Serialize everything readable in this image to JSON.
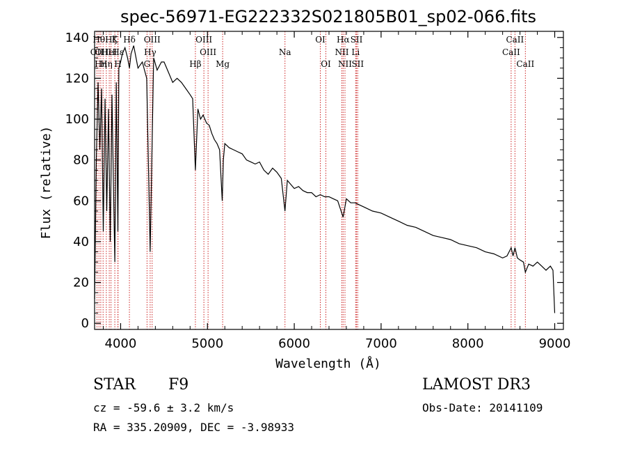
{
  "chart_data": {
    "type": "line",
    "title": "spec-56971-EG222332S021805B01_sp02-066.fits",
    "xlabel": "Wavelength (Å)",
    "ylabel": "Flux (relative)",
    "xlim": [
      3700,
      9100
    ],
    "ylim": [
      -3,
      143
    ],
    "xticks": [
      4000,
      5000,
      6000,
      7000,
      8000,
      9000
    ],
    "yticks": [
      0,
      20,
      40,
      60,
      80,
      100,
      120,
      140
    ],
    "series": [
      {
        "name": "spectrum",
        "x": [
          3700,
          3720,
          3740,
          3760,
          3780,
          3800,
          3820,
          3840,
          3860,
          3880,
          3900,
          3920,
          3933,
          3950,
          3968,
          3980,
          4000,
          4020,
          4050,
          4080,
          4101,
          4120,
          4150,
          4200,
          4250,
          4300,
          4340,
          4380,
          4420,
          4470,
          4500,
          4550,
          4600,
          4650,
          4700,
          4750,
          4800,
          4830,
          4861,
          4890,
          4920,
          4950,
          4990,
          5020,
          5050,
          5080,
          5110,
          5140,
          5170,
          5183,
          5200,
          5250,
          5300,
          5350,
          5400,
          5450,
          5500,
          5550,
          5600,
          5650,
          5700,
          5750,
          5800,
          5850,
          5893,
          5920,
          5960,
          6000,
          6050,
          6100,
          6150,
          6200,
          6250,
          6300,
          6350,
          6400,
          6450,
          6500,
          6563,
          6600,
          6650,
          6700,
          6750,
          6800,
          6900,
          7000,
          7100,
          7200,
          7300,
          7400,
          7500,
          7600,
          7700,
          7800,
          7900,
          8000,
          8100,
          8200,
          8300,
          8400,
          8450,
          8498,
          8520,
          8542,
          8570,
          8600,
          8640,
          8662,
          8700,
          8750,
          8800,
          8850,
          8900,
          8950,
          8980,
          9000
        ],
        "values": [
          12,
          80,
          118,
          85,
          115,
          45,
          110,
          55,
          105,
          40,
          112,
          60,
          30,
          118,
          45,
          125,
          128,
          132,
          135,
          130,
          125,
          132,
          136,
          125,
          128,
          120,
          35,
          130,
          124,
          128,
          128,
          123,
          118,
          120,
          118,
          115,
          112,
          110,
          75,
          105,
          100,
          102,
          98,
          97,
          93,
          90,
          88,
          85,
          60,
          80,
          88,
          86,
          85,
          84,
          83,
          80,
          79,
          78,
          79,
          75,
          73,
          76,
          74,
          71,
          55,
          70,
          68,
          66,
          67,
          65,
          64,
          64,
          62,
          63,
          62,
          62,
          61,
          60,
          52,
          61,
          59,
          59,
          58,
          57,
          55,
          54,
          52,
          50,
          48,
          47,
          45,
          43,
          42,
          41,
          39,
          38,
          37,
          35,
          34,
          32,
          33,
          37,
          33,
          37,
          32,
          31,
          30,
          25,
          29,
          28,
          30,
          28,
          26,
          28,
          26,
          5
        ]
      }
    ],
    "line_markers": [
      {
        "x": 3727,
        "label": "OII",
        "row": 2
      },
      {
        "x": 3750,
        "label": "Hθ",
        "row": 1
      },
      {
        "x": 3771,
        "label": "Hη",
        "row": 3
      },
      {
        "x": 3798,
        "label": "OIII",
        "row": 2
      },
      {
        "x": 3835,
        "label": "Hη",
        "row": 3
      },
      {
        "x": 3869,
        "label": "HeI",
        "row": 2
      },
      {
        "x": 3889,
        "label": "Hζ",
        "row": 1
      },
      {
        "x": 3933,
        "label": "K",
        "row": 1
      },
      {
        "x": 3968,
        "label": "H",
        "row": 3
      },
      {
        "x": 3970,
        "label": "Hε",
        "row": 2
      },
      {
        "x": 4101,
        "label": "Hδ",
        "row": 1
      },
      {
        "x": 4304,
        "label": "G",
        "row": 3
      },
      {
        "x": 4340,
        "label": "Hγ",
        "row": 2
      },
      {
        "x": 4363,
        "label": "OIII",
        "row": 1
      },
      {
        "x": 4861,
        "label": "Hβ",
        "row": 3
      },
      {
        "x": 4959,
        "label": "OIII",
        "row": 1
      },
      {
        "x": 5007,
        "label": "OIII",
        "row": 2
      },
      {
        "x": 5175,
        "label": "Mg",
        "row": 3
      },
      {
        "x": 5893,
        "label": "Na",
        "row": 2
      },
      {
        "x": 6300,
        "label": "OI",
        "row": 1
      },
      {
        "x": 6364,
        "label": "OI",
        "row": 3
      },
      {
        "x": 6548,
        "label": "NII",
        "row": 2
      },
      {
        "x": 6563,
        "label": "Hα",
        "row": 1
      },
      {
        "x": 6584,
        "label": "NII",
        "row": 3
      },
      {
        "x": 6707,
        "label": "Li",
        "row": 2
      },
      {
        "x": 6717,
        "label": "SII",
        "row": 1
      },
      {
        "x": 6731,
        "label": "SII",
        "row": 3
      },
      {
        "x": 8498,
        "label": "CaII",
        "row": 2
      },
      {
        "x": 8542,
        "label": "CaII",
        "row": 1
      },
      {
        "x": 8662,
        "label": "CaII",
        "row": 3
      }
    ]
  },
  "info": {
    "class": "STAR",
    "subclass": "F9",
    "cz": "cz = -59.6 ± 3.2 km/s",
    "coords": "RA = 335.20909, DEC =  -3.98933",
    "survey": "LAMOST DR3",
    "obsdate": "Obs-Date: 20141109"
  },
  "colors": {
    "line_marker": "#cc2222",
    "spectrum": "#000000"
  }
}
